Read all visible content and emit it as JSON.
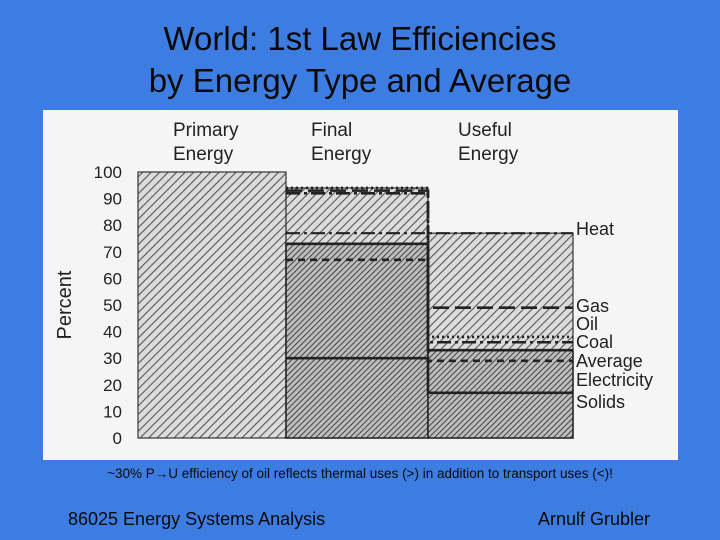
{
  "slide": {
    "title_line1": "World: 1st Law Efficiencies",
    "title_line2": "by Energy Type and Average",
    "caption": "~30% P→U efficiency of oil reflects thermal uses (>) in addition to transport uses (<)!",
    "footer_left": "86025 Energy Systems Analysis",
    "footer_right": "Arnulf Grubler"
  },
  "colors": {
    "background": "#3d7de2",
    "panel": "#f5f5f5",
    "hatch": "#555555"
  },
  "chart_data": {
    "type": "bar",
    "title": "",
    "ylabel": "Percent",
    "ylim": [
      0,
      100
    ],
    "yticks": [
      "0",
      "10",
      "20",
      "30",
      "40",
      "50",
      "60",
      "70",
      "80",
      "90",
      "100"
    ],
    "stage_labels": [
      [
        "Primary",
        "Energy"
      ],
      [
        "Final",
        "Energy"
      ],
      [
        "Useful",
        "Energy"
      ]
    ],
    "categories": [
      "Primary Energy",
      "Final Energy",
      "Useful Energy"
    ],
    "series": [
      {
        "name": "Heat",
        "style": "dash-dot",
        "values": [
          100,
          77,
          77
        ]
      },
      {
        "name": "Gas",
        "style": "long-dash",
        "values": [
          100,
          93,
          49
        ]
      },
      {
        "name": "Oil",
        "style": "dotted",
        "values": [
          100,
          94,
          38
        ]
      },
      {
        "name": "Coal",
        "style": "dash-dot",
        "values": [
          100,
          92,
          36
        ]
      },
      {
        "name": "Average",
        "style": "solid-hatched",
        "values": [
          100,
          73,
          33
        ]
      },
      {
        "name": "Electricity",
        "style": "short-dash",
        "values": [
          100,
          67,
          29
        ]
      },
      {
        "name": "Solids",
        "style": "solid",
        "values": [
          100,
          30,
          17
        ]
      }
    ],
    "label_order": [
      "Heat",
      "Gas",
      "Oil",
      "Coal",
      "Average",
      "Electricity",
      "Solids"
    ]
  }
}
